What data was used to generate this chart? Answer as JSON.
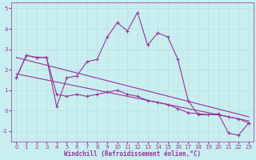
{
  "xlabel": "Windchill (Refroidissement éolien,°C)",
  "background_color": "#c8eef0",
  "grid_color": "#b8dede",
  "line_color": "#993399",
  "ylim": [
    -1.5,
    5.3
  ],
  "xlim": [
    -0.5,
    23.5
  ],
  "yticks": [
    -1,
    0,
    1,
    2,
    3,
    4,
    5
  ],
  "xticks": [
    0,
    1,
    2,
    3,
    4,
    5,
    6,
    7,
    8,
    9,
    10,
    11,
    12,
    13,
    14,
    15,
    16,
    17,
    18,
    19,
    20,
    21,
    22,
    23
  ],
  "curve1_x": [
    0,
    1,
    2,
    3,
    4,
    5,
    6,
    7,
    8,
    9,
    10,
    11,
    12,
    13,
    14,
    15,
    16,
    17,
    18,
    19,
    20,
    21,
    22,
    23
  ],
  "curve1_y": [
    1.6,
    2.7,
    2.6,
    2.6,
    0.2,
    1.6,
    1.7,
    2.4,
    2.5,
    3.6,
    4.3,
    3.9,
    4.8,
    3.2,
    3.8,
    3.6,
    2.5,
    0.5,
    -0.2,
    -0.2,
    -0.15,
    -1.1,
    -1.2,
    -0.6
  ],
  "curve2_x": [
    0,
    1,
    2,
    3,
    4,
    5,
    6,
    7,
    8,
    9,
    10,
    11,
    12,
    13,
    14,
    15,
    16,
    17,
    18,
    19,
    20,
    21,
    22,
    23
  ],
  "curve2_y": [
    1.6,
    2.7,
    2.6,
    2.6,
    0.8,
    0.7,
    0.8,
    0.7,
    0.8,
    0.9,
    1.0,
    0.8,
    0.7,
    0.5,
    0.4,
    0.3,
    0.1,
    -0.1,
    -0.15,
    -0.2,
    -0.2,
    -0.3,
    -0.4,
    -0.6
  ],
  "line1_x": [
    0,
    23
  ],
  "line1_y": [
    2.6,
    -0.3
  ],
  "line2_x": [
    0,
    23
  ],
  "line2_y": [
    1.8,
    -0.5
  ]
}
